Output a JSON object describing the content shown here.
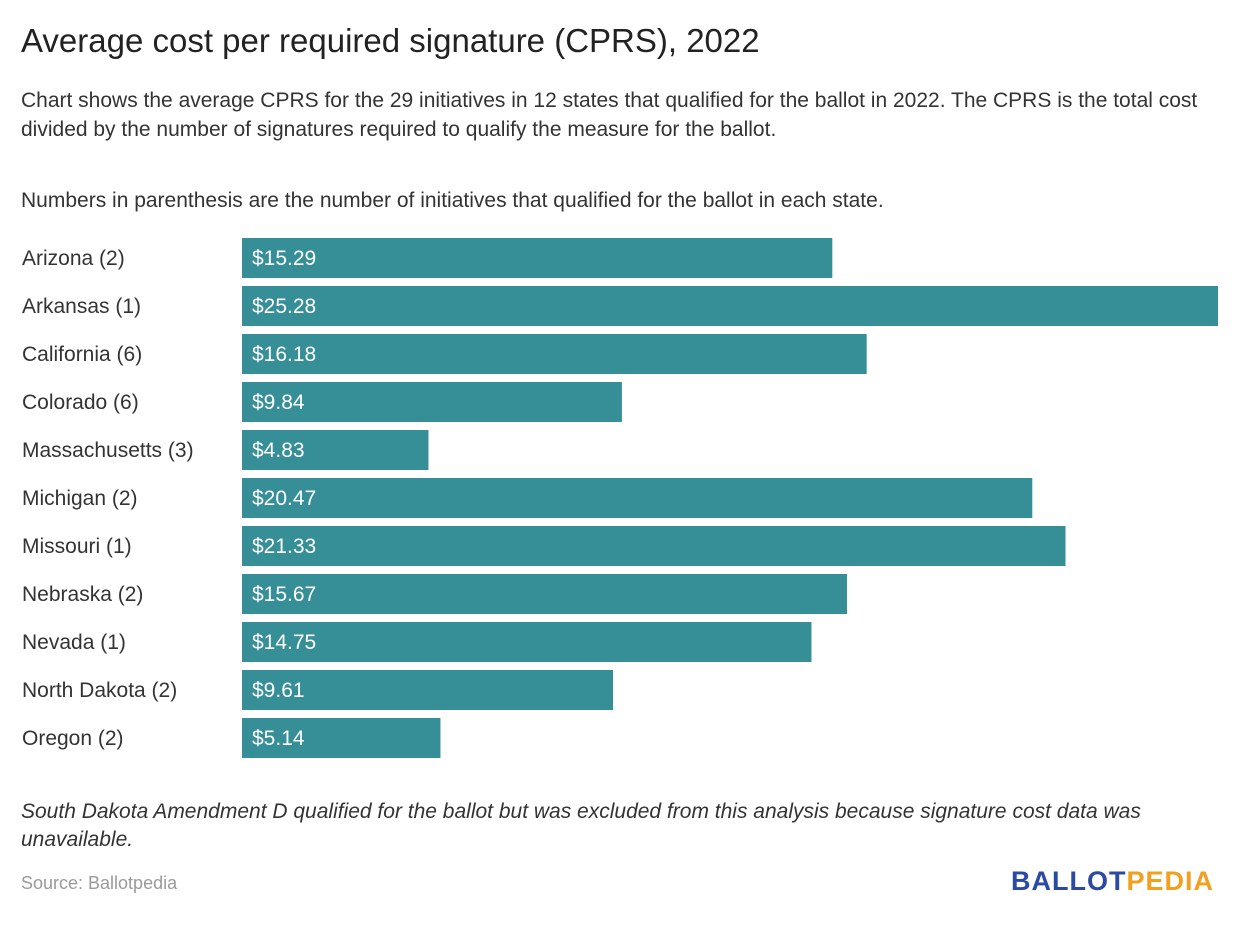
{
  "title": "Average cost per required signature (CPRS), 2022",
  "description": "Chart shows the average CPRS for the 29 initiatives in 12 states that qualified for the ballot in 2022. The CPRS is the total cost divided by the number of signatures required to qualify the measure for the ballot.",
  "note": "Numbers in parenthesis are the number of initiatives that qualified for the ballot in each state.",
  "footnote": "South Dakota Amendment D qualified for the ballot but was excluded from this analysis because signature cost data was unavailable.",
  "source": "Source: Ballotpedia",
  "logo": {
    "part1": "BALLOT",
    "part2": "PEDIA"
  },
  "colors": {
    "bar": "#368e97",
    "bar_label": "#ffffff",
    "category_label": "#333333"
  },
  "chart_data": {
    "type": "bar",
    "orientation": "horizontal",
    "categories": [
      "Arizona (2)",
      "Arkansas (1)",
      "California (6)",
      "Colorado (6)",
      "Massachusetts (3)",
      "Michigan (2)",
      "Missouri (1)",
      "Nebraska (2)",
      "Nevada (1)",
      "North Dakota (2)",
      "Oregon (2)"
    ],
    "values": [
      15.29,
      25.28,
      16.18,
      9.84,
      4.83,
      20.47,
      21.33,
      15.67,
      14.75,
      9.61,
      5.14
    ],
    "labels": [
      "$15.29",
      "$25.28",
      "$16.18",
      "$9.84",
      "$4.83",
      "$20.47",
      "$21.33",
      "$15.67",
      "$14.75",
      "$9.61",
      "$5.14"
    ],
    "xlim": [
      0,
      25.28
    ],
    "grid": false,
    "legend": false
  }
}
